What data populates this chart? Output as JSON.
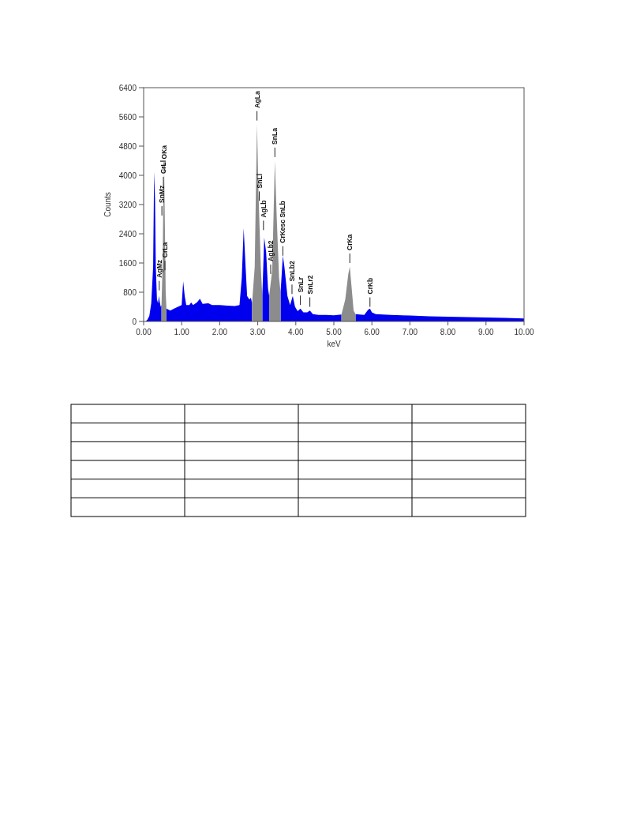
{
  "chart_data": {
    "type": "area",
    "xlabel": "keV",
    "ylabel": "Counts",
    "xlim": [
      0,
      10
    ],
    "ylim": [
      0,
      6400
    ],
    "xticks": [
      {
        "value": 0,
        "label": "0.00"
      },
      {
        "value": 1,
        "label": "1.00"
      },
      {
        "value": 2,
        "label": "2.00"
      },
      {
        "value": 3,
        "label": "3.00"
      },
      {
        "value": 4,
        "label": "4.00"
      },
      {
        "value": 5,
        "label": "5.00"
      },
      {
        "value": 6,
        "label": "6.00"
      },
      {
        "value": 7,
        "label": "7.00"
      },
      {
        "value": 8,
        "label": "8.00"
      },
      {
        "value": 9,
        "label": "9.00"
      },
      {
        "value": 10,
        "label": "10.00"
      }
    ],
    "yticks": [
      0,
      800,
      1600,
      2400,
      3200,
      4000,
      4800,
      5600,
      6400
    ],
    "grid": false,
    "series": [
      {
        "color": "#0000ee",
        "x": [
          0.05,
          0.1,
          0.15,
          0.2,
          0.25,
          0.27,
          0.28,
          0.3,
          0.32,
          0.35,
          0.38,
          0.4,
          0.42,
          0.45,
          0.47,
          0.5,
          0.6,
          0.7,
          0.8,
          0.9,
          1.0,
          1.04,
          1.08,
          1.12,
          1.2,
          1.25,
          1.3,
          1.4,
          1.48,
          1.55,
          1.7,
          1.8,
          2.0,
          2.2,
          2.4,
          2.52,
          2.58,
          2.63,
          2.68,
          2.72,
          2.78,
          2.82,
          2.85,
          3.0,
          3.12,
          3.17,
          3.22,
          3.27,
          3.3,
          3.45,
          3.6,
          3.66,
          3.7,
          3.78,
          3.85,
          3.92,
          3.98,
          4.05,
          4.12,
          4.2,
          4.3,
          4.37,
          4.45,
          4.6,
          4.8,
          5.0,
          5.2,
          5.4,
          5.57,
          5.8,
          5.9,
          5.95,
          6.0,
          6.1,
          6.5,
          7.0,
          7.5,
          8.0,
          8.5,
          9.0,
          9.5,
          10.0
        ],
        "values": [
          0,
          50,
          150,
          500,
          1500,
          3500,
          4100,
          3300,
          1500,
          600,
          500,
          700,
          550,
          400,
          450,
          null,
          350,
          300,
          350,
          400,
          450,
          1100,
          700,
          450,
          450,
          520,
          450,
          520,
          620,
          480,
          500,
          450,
          450,
          430,
          420,
          450,
          1200,
          2550,
          1500,
          700,
          600,
          650,
          500,
          null,
          700,
          2300,
          1900,
          900,
          700,
          null,
          800,
          1800,
          1500,
          700,
          450,
          700,
          400,
          280,
          350,
          250,
          250,
          300,
          200,
          180,
          180,
          170,
          190,
          null,
          200,
          180,
          320,
          350,
          250,
          200,
          180,
          160,
          140,
          130,
          120,
          110,
          100,
          80
        ]
      },
      {
        "color": "#8c8c8c",
        "x": [
          0.47,
          0.5,
          0.52,
          0.54,
          0.56,
          0.58,
          0.6,
          1.5,
          2.85,
          2.92,
          2.98,
          3.02,
          3.08,
          3.12,
          3.2,
          3.3,
          3.38,
          3.45,
          3.5,
          3.56,
          3.6,
          4.5,
          5.2,
          5.3,
          5.38,
          5.42,
          5.47,
          5.52,
          5.57
        ],
        "values": [
          450,
          1600,
          3500,
          4100,
          2500,
          800,
          350,
          null,
          500,
          1500,
          5400,
          3500,
          1500,
          700,
          null,
          700,
          1400,
          4400,
          2800,
          1200,
          800,
          null,
          190,
          600,
          1300,
          1500,
          900,
          300,
          200
        ]
      }
    ],
    "annotations": [
      {
        "text": "AgMz",
        "x": 0.41,
        "y": 850
      },
      {
        "text": "SnMz",
        "x": 0.48,
        "y": 2900
      },
      {
        "text": "CrLl",
        "x": 0.52,
        "y": 3700
      },
      {
        "text": "OKa",
        "x": 0.54,
        "y": 4100
      },
      {
        "text": "CrLa",
        "x": 0.56,
        "y": 1400
      },
      {
        "text": "AgLa",
        "x": 2.98,
        "y": 5500
      },
      {
        "text": "SnLl",
        "x": 3.04,
        "y": 3300
      },
      {
        "text": "AgLb",
        "x": 3.15,
        "y": 2500
      },
      {
        "text": "AgLb2",
        "x": 3.34,
        "y": 1300
      },
      {
        "text": "SnLa",
        "x": 3.45,
        "y": 4500
      },
      {
        "text": "CrKesc SnLb",
        "x": 3.66,
        "y": 1800
      },
      {
        "text": "SnLb2",
        "x": 3.9,
        "y": 750
      },
      {
        "text": "SnLr",
        "x": 4.12,
        "y": 450
      },
      {
        "text": "SnLr2",
        "x": 4.37,
        "y": 400
      },
      {
        "text": "CrKa",
        "x": 5.42,
        "y": 1600
      },
      {
        "text": "CrKb",
        "x": 5.95,
        "y": 400
      }
    ]
  }
}
